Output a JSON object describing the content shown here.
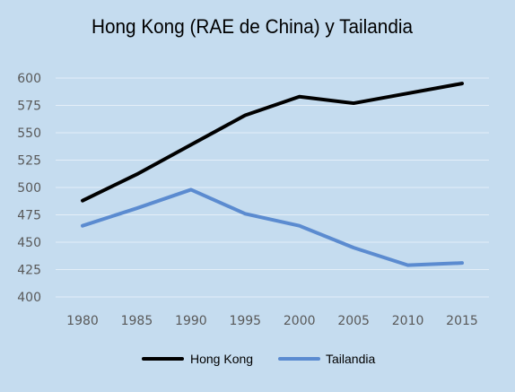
{
  "chart_data": {
    "type": "line",
    "title": "Hong Kong (RAE de China) y Tailandia",
    "xlabel": "",
    "ylabel": "",
    "categories": [
      "1980",
      "1985",
      "1990",
      "1995",
      "2000",
      "2005",
      "2010",
      "2015"
    ],
    "ylim": [
      400,
      600
    ],
    "yticks": [
      400,
      425,
      450,
      475,
      500,
      525,
      550,
      575,
      600
    ],
    "grid": true,
    "legend_position": "bottom",
    "series": [
      {
        "name": "Hong Kong",
        "color": "#000000",
        "values": [
          488,
          512,
          539,
          566,
          583,
          577,
          586,
          595
        ]
      },
      {
        "name": "Tailandia",
        "color": "#5b8bd0",
        "values": [
          465,
          481,
          498,
          476,
          465,
          445,
          429,
          431
        ]
      }
    ]
  }
}
